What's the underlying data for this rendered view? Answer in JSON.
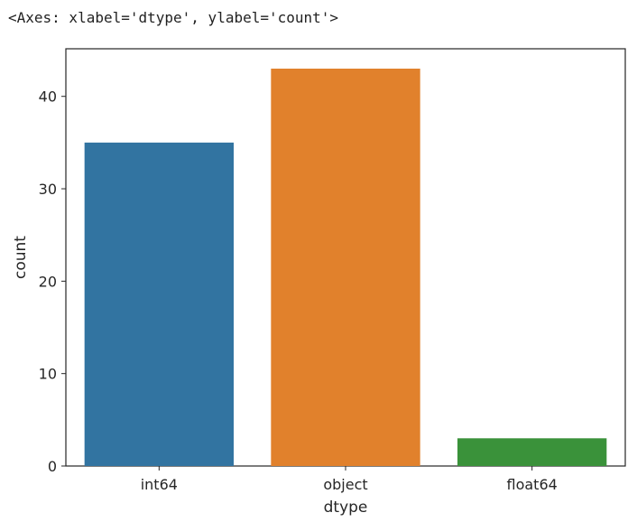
{
  "output": {
    "repr_text": "<Axes: xlabel='dtype', ylabel='count'>"
  },
  "chart_data": {
    "type": "bar",
    "categories": [
      "int64",
      "object",
      "float64"
    ],
    "values": [
      35,
      43,
      3
    ],
    "colors": [
      "#3274a1",
      "#e1812c",
      "#3a923a"
    ],
    "xlabel": "dtype",
    "ylabel": "count",
    "ylim": [
      0,
      45.15
    ],
    "yticks": [
      0,
      10,
      20,
      30,
      40
    ],
    "grid": false
  }
}
